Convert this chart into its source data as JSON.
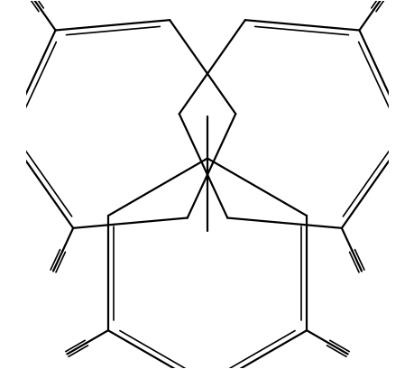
{
  "bg_color": "#ffffff",
  "line_color": "#000000",
  "lw_main": 1.6,
  "lw_double": 1.2,
  "figsize": [
    4.6,
    4.09
  ],
  "dpi": 100,
  "xlim": [
    -4.2,
    4.2
  ],
  "ylim": [
    -4.5,
    4.0
  ]
}
